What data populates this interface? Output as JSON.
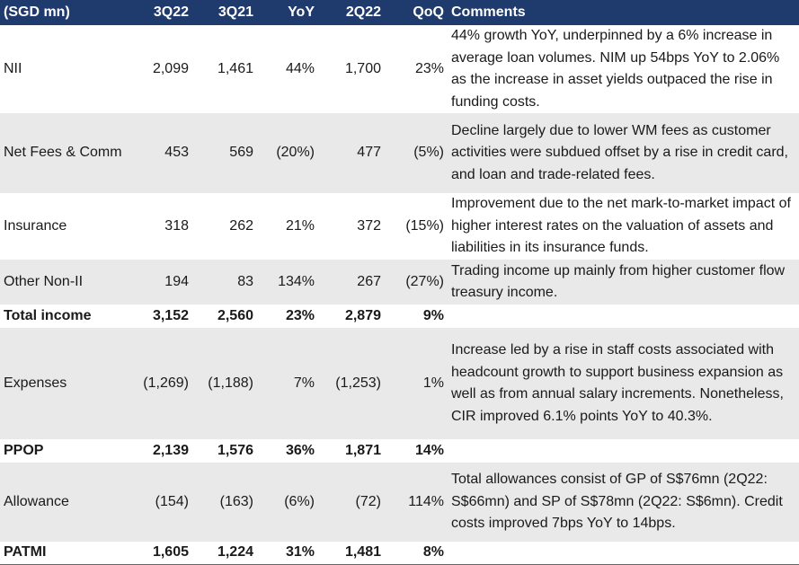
{
  "headers": [
    "(SGD mn)",
    "3Q22",
    "3Q21",
    "YoY",
    "2Q22",
    "QoQ",
    "Comments"
  ],
  "rows": [
    {
      "label": "NII",
      "v": [
        "2,099",
        "1,461",
        "44%",
        "1,700",
        "23%"
      ],
      "comment": "44% growth YoY, underpinned by a 6% increase in average loan volumes. NIM up 54bps YoY to 2.06% as the increase in asset yields outpaced the rise in funding costs."
    },
    {
      "label": "Net Fees & Comm",
      "v": [
        "453",
        "569",
        "(20%)",
        "477",
        "(5%)"
      ],
      "comment": "Decline largely due to lower WM fees as customer activities were subdued offset by a rise in credit card, and loan and trade-related fees."
    },
    {
      "label": "Insurance",
      "v": [
        "318",
        "262",
        "21%",
        "372",
        "(15%)"
      ],
      "comment": "Improvement due to the net mark-to-market impact of higher interest rates on the valuation of assets and liabilities in its insurance funds."
    },
    {
      "label": "Other Non-II",
      "v": [
        "194",
        "83",
        "134%",
        "267",
        "(27%)"
      ],
      "comment": "Trading income up mainly from higher customer flow treasury income."
    },
    {
      "label": "Total income",
      "v": [
        "3,152",
        "2,560",
        "23%",
        "2,879",
        "9%"
      ],
      "comment": ""
    },
    {
      "label": "Expenses",
      "v": [
        "(1,269)",
        "(1,188)",
        "7%",
        "(1,253)",
        "1%"
      ],
      "comment": "Increase led by a rise in staff costs associated with headcount growth to support business expansion as well as from annual salary increments. Nonetheless, CIR improved 6.1% points YoY to 40.3%."
    },
    {
      "label": "PPOP",
      "v": [
        "2,139",
        "1,576",
        "36%",
        "1,871",
        "14%"
      ],
      "comment": ""
    },
    {
      "label": "Allowance",
      "v": [
        "(154)",
        "(163)",
        "(6%)",
        "(72)",
        "114%"
      ],
      "comment": "Total allowances consist of GP of S$76mn (2Q22: S$66mn) and SP of S$78mn (2Q22: S$6mn). Credit costs improved 7bps YoY to 14bps."
    },
    {
      "label": "PATMI",
      "v": [
        "1,605",
        "1,224",
        "31%",
        "1,481",
        "8%"
      ],
      "comment": ""
    }
  ]
}
